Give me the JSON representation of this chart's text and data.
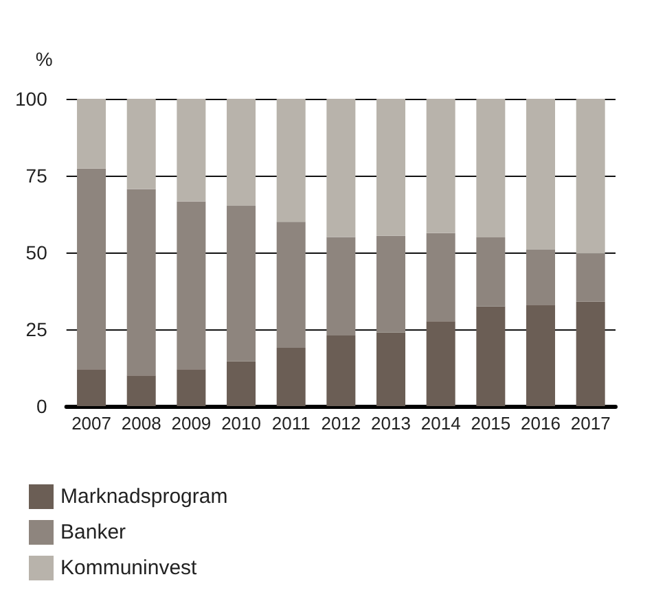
{
  "chart_data": {
    "type": "bar",
    "ylabel": "%",
    "stacked": true,
    "categories": [
      "2007",
      "2008",
      "2009",
      "2010",
      "2011",
      "2012",
      "2013",
      "2014",
      "2015",
      "2016",
      "2017"
    ],
    "series": [
      {
        "name": "Marknadsprogram",
        "color": "#6b5e55",
        "values": [
          12,
          10,
          12,
          14.6,
          19,
          23,
          24,
          27.6,
          32.5,
          33,
          34
        ]
      },
      {
        "name": "Banker",
        "color": "#8e857e",
        "values": [
          65.3,
          60.6,
          54.6,
          50.6,
          41,
          32,
          31.4,
          28.7,
          22.4,
          17.9,
          15.6
        ]
      },
      {
        "name": "Kommuninvest",
        "color": "#b8b3ab",
        "values": [
          22.7,
          29.4,
          33.4,
          34.8,
          40,
          45,
          44.6,
          43.7,
          45.1,
          49.1,
          50.4
        ]
      }
    ],
    "ylim": [
      0,
      100
    ],
    "yticks": [
      0,
      25,
      50,
      75,
      100
    ],
    "grid": "y",
    "legend": "bottom"
  }
}
